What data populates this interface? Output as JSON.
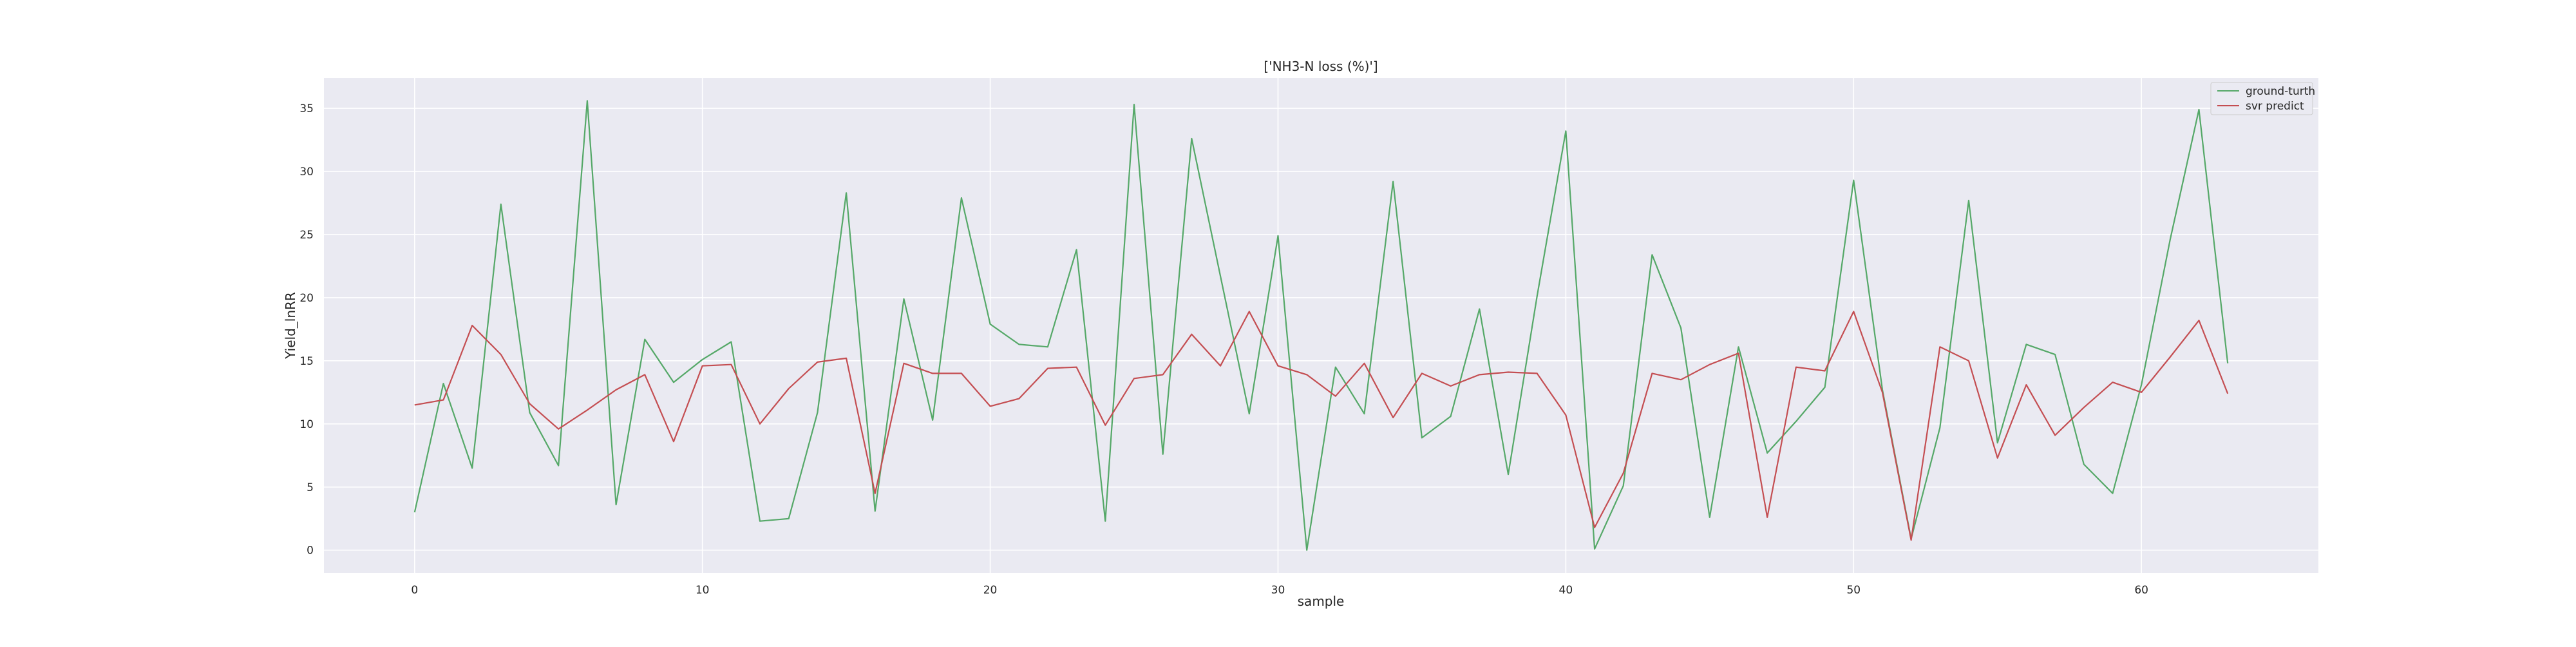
{
  "chart_data": {
    "type": "line",
    "title": "['NH3-N loss (%)']",
    "xlabel": "sample",
    "ylabel": "Yield_lnRR",
    "xlim": [
      -3.15,
      66.15
    ],
    "ylim": [
      -1.8,
      37.4
    ],
    "xticks": [
      0,
      10,
      20,
      30,
      40,
      50,
      60
    ],
    "yticks": [
      0,
      5,
      10,
      15,
      20,
      25,
      30,
      35
    ],
    "grid": true,
    "legend_position": "top-right",
    "x": [
      0,
      1,
      2,
      3,
      4,
      5,
      6,
      7,
      8,
      9,
      10,
      11,
      12,
      13,
      14,
      15,
      16,
      17,
      18,
      19,
      20,
      21,
      22,
      23,
      24,
      25,
      26,
      27,
      28,
      29,
      30,
      31,
      32,
      33,
      34,
      35,
      36,
      37,
      38,
      39,
      40,
      41,
      42,
      43,
      44,
      45,
      46,
      47,
      48,
      49,
      50,
      51,
      52,
      53,
      54,
      55,
      56,
      57,
      58,
      59,
      60,
      61,
      62,
      63
    ],
    "series": [
      {
        "name": "ground-turth",
        "color": "#55a868",
        "values": [
          3.0,
          13.2,
          6.5,
          27.4,
          10.9,
          6.7,
          35.6,
          3.6,
          16.7,
          13.3,
          15.1,
          16.5,
          2.3,
          2.5,
          10.9,
          28.3,
          3.1,
          19.9,
          10.3,
          27.9,
          17.9,
          16.3,
          16.1,
          23.8,
          2.3,
          35.3,
          7.6,
          32.6,
          21.7,
          10.8,
          24.9,
          0.0,
          14.5,
          10.8,
          29.2,
          8.9,
          10.6,
          19.1,
          6.0,
          20.1,
          33.2,
          0.1,
          5.1,
          23.4,
          17.6,
          2.6,
          16.1,
          7.7,
          10.2,
          12.9,
          29.3,
          12.7,
          0.9,
          9.7,
          27.7,
          8.5,
          16.3,
          15.5,
          6.8,
          4.5,
          13.1,
          24.6,
          34.9,
          14.8
        ]
      },
      {
        "name": "svr predict",
        "color": "#c44e52",
        "values": [
          11.5,
          11.9,
          17.8,
          15.5,
          11.6,
          9.6,
          11.1,
          12.7,
          13.9,
          8.6,
          14.6,
          14.7,
          10.0,
          12.8,
          14.9,
          15.2,
          4.5,
          14.8,
          14.0,
          14.0,
          11.4,
          12.0,
          14.4,
          14.5,
          9.9,
          13.6,
          13.9,
          17.1,
          14.6,
          18.9,
          14.6,
          13.9,
          12.2,
          14.8,
          10.5,
          14.0,
          13.0,
          13.9,
          14.1,
          14.0,
          10.7,
          1.8,
          6.1,
          14.0,
          13.5,
          14.7,
          15.6,
          2.6,
          14.5,
          14.2,
          18.9,
          12.5,
          0.8,
          16.1,
          15.0,
          7.3,
          13.1,
          9.1,
          11.3,
          13.3,
          12.5,
          15.3,
          18.2,
          12.4
        ]
      }
    ]
  }
}
